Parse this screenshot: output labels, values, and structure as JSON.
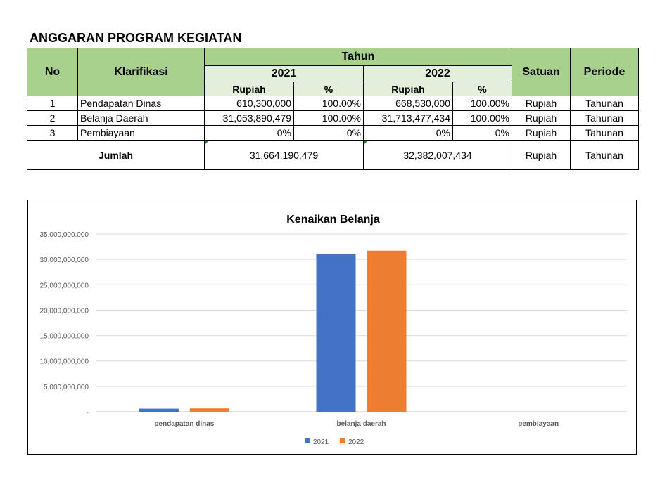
{
  "page_title": "ANGGARAN PROGRAM KEGIATAN",
  "table": {
    "headers": {
      "no": "No",
      "klarifikasi": "Klarifikasi",
      "tahun": "Tahun",
      "year_2021": "2021",
      "year_2022": "2022",
      "rupiah": "Rupiah",
      "percent": "%",
      "satuan": "Satuan",
      "periode": "Periode"
    },
    "rows": [
      {
        "no": "1",
        "name": "Pendapatan Dinas",
        "rp2021": "610,300,000",
        "pct2021": "100.00%",
        "rp2022": "668,530,000",
        "pct2022": "100.00%",
        "satuan": "Rupiah",
        "periode": "Tahunan"
      },
      {
        "no": "2",
        "name": "Belanja Daerah",
        "rp2021": "31,053,890,479",
        "pct2021": "100.00%",
        "rp2022": "31,713,477,434",
        "pct2022": "100.00%",
        "satuan": "Rupiah",
        "periode": "Tahunan"
      },
      {
        "no": "3",
        "name": "Pembiayaan",
        "rp2021": "0%",
        "pct2021": "0%",
        "rp2022": "0%",
        "pct2022": "0%",
        "satuan": "Rupiah",
        "periode": "Tahunan"
      }
    ],
    "total": {
      "label": "Jumlah",
      "total2021": "31,664,190,479",
      "total2022": "32,382,007,434",
      "satuan": "Rupiah",
      "periode": "Tahunan"
    }
  },
  "chart_data": {
    "type": "bar",
    "title": "Kenaikan Belanja",
    "xlabel": "",
    "ylabel": "",
    "categories": [
      "pendapatan dinas",
      "belanja daerah",
      "pembiayaan"
    ],
    "series": [
      {
        "name": "2021",
        "values": [
          610300000,
          31053890479,
          0
        ],
        "color": "#4472c4"
      },
      {
        "name": "2022",
        "values": [
          668530000,
          31713477434,
          0
        ],
        "color": "#ed7d31"
      }
    ],
    "ylim": [
      0,
      35000000000
    ],
    "yticks": [
      0,
      5000000000,
      10000000000,
      15000000000,
      20000000000,
      25000000000,
      30000000000,
      35000000000
    ],
    "ytick_labels": [
      "-",
      "5,000,000,000",
      "10,000,000,000",
      "15,000,000,000",
      "20,000,000,000",
      "25,000,000,000",
      "30,000,000,000",
      "35,000,000,000"
    ],
    "grid": true,
    "legend": "bottom"
  }
}
